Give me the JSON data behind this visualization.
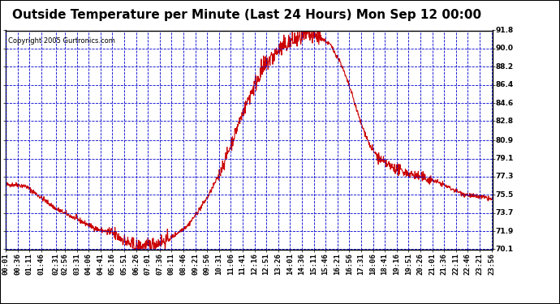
{
  "title": "Outside Temperature per Minute (Last 24 Hours) Mon Sep 12 00:00",
  "copyright": "Copyright 2005 Gurtronics.com",
  "ylabel_ticks": [
    70.1,
    71.9,
    73.7,
    75.5,
    77.3,
    79.1,
    80.9,
    82.8,
    84.6,
    86.4,
    88.2,
    90.0,
    91.8
  ],
  "ymin": 70.1,
  "ymax": 91.8,
  "background_color": "#ffffff",
  "plot_bg_color": "#ffffff",
  "grid_color": "#0000cc",
  "line_color": "#cc0000",
  "title_fontsize": 11,
  "copyright_fontsize": 6,
  "tick_fontsize": 6.5,
  "x_labels": [
    "00:01",
    "00:36",
    "01:11",
    "01:46",
    "02:31",
    "02:56",
    "03:31",
    "04:06",
    "04:41",
    "05:16",
    "05:51",
    "06:26",
    "07:01",
    "07:36",
    "08:11",
    "08:46",
    "09:21",
    "09:56",
    "10:31",
    "11:06",
    "11:41",
    "12:16",
    "12:51",
    "13:26",
    "14:01",
    "14:36",
    "15:11",
    "15:46",
    "16:21",
    "16:56",
    "17:31",
    "18:06",
    "18:41",
    "19:16",
    "19:51",
    "20:26",
    "21:01",
    "21:36",
    "22:11",
    "22:46",
    "23:21",
    "23:56"
  ]
}
